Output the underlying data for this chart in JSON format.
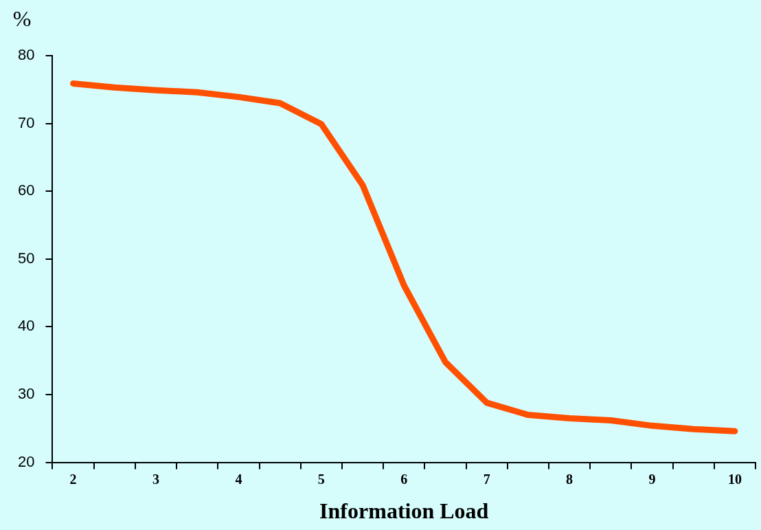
{
  "chart_data": {
    "type": "line",
    "xlabel": "Information Load",
    "ylabel": "%",
    "categories": [
      "2",
      null,
      "3",
      null,
      "4",
      null,
      "5",
      null,
      "6",
      null,
      "7",
      null,
      "8",
      null,
      "9",
      null,
      "10"
    ],
    "series": [
      {
        "color": "#ff5000",
        "values": [
          75.9,
          75.3,
          74.9,
          74.6,
          73.9,
          73.0,
          69.9,
          60.9,
          46.1,
          34.8,
          28.8,
          27.0,
          26.5,
          26.2,
          25.4,
          24.9,
          24.6
        ]
      }
    ],
    "ylim": [
      20,
      80
    ],
    "yticks": [
      20,
      30,
      40,
      50,
      60,
      70,
      80
    ],
    "grid": false,
    "legend": false,
    "marker": "none",
    "line_style": "solid"
  }
}
